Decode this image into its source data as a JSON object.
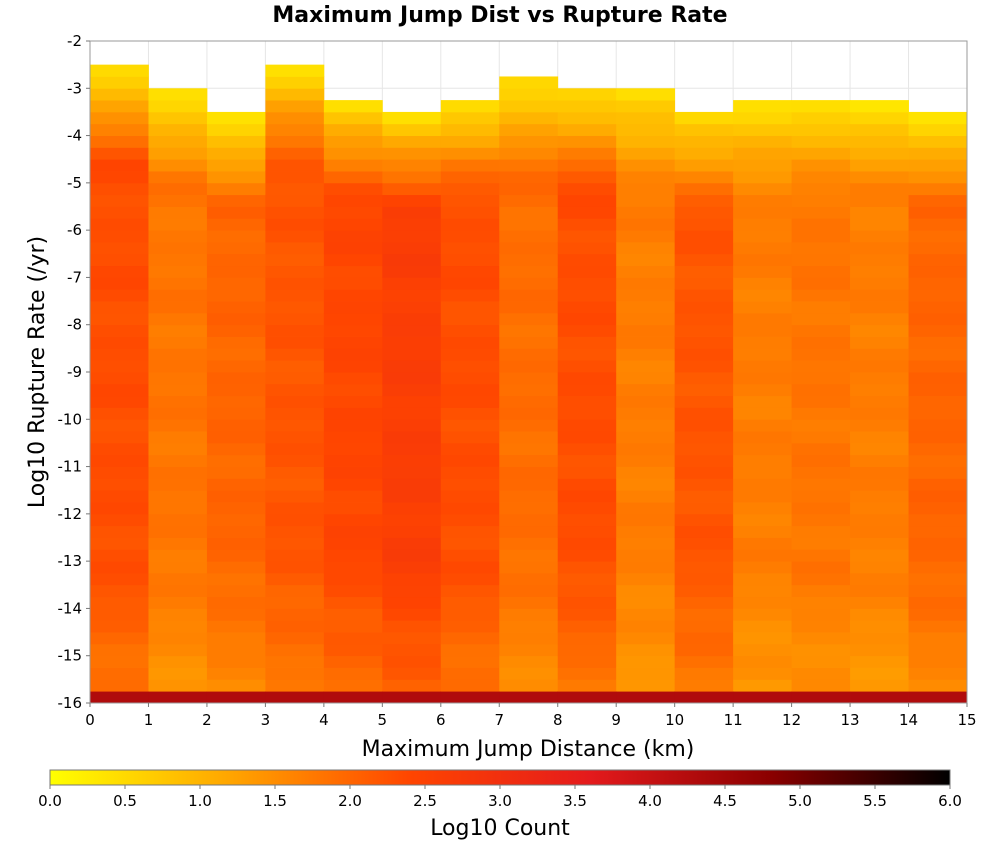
{
  "chart_data": {
    "type": "heatmap",
    "title": "Maximum Jump Dist vs Rupture Rate",
    "xlabel": "Maximum Jump Distance (km)",
    "ylabel": "Log10 Rupture Rate (/yr)",
    "xlim": [
      0,
      15
    ],
    "ylim": [
      -16,
      -2
    ],
    "x_ticks": [
      "0",
      "1",
      "2",
      "3",
      "4",
      "5",
      "6",
      "7",
      "8",
      "9",
      "10",
      "11",
      "12",
      "13",
      "14",
      "15"
    ],
    "y_ticks": [
      "-2",
      "-3",
      "-4",
      "-5",
      "-6",
      "-7",
      "-8",
      "-9",
      "-10",
      "-11",
      "-12",
      "-13",
      "-14",
      "-15",
      "-16"
    ],
    "x_bins": [
      0.5,
      1.5,
      2.5,
      3.5,
      4.5,
      5.5,
      6.5,
      7.5,
      8.5,
      9.5,
      10.5,
      11.5,
      12.5,
      13.5,
      14.5
    ],
    "y_bin_width": 0.25,
    "y_first_bin_center": -15.875,
    "y_tops": [
      -2.5,
      -3.0,
      -3.5,
      -2.5,
      -3.25,
      -3.5,
      -3.25,
      -2.75,
      -3.0,
      -3.0,
      -3.5,
      -3.25,
      -3.25,
      -3.25,
      -3.5
    ],
    "column_peak_values": [
      2.3,
      1.8,
      2.0,
      2.2,
      2.4,
      2.6,
      2.3,
      1.9,
      2.3,
      1.7,
      2.2,
      1.7,
      1.8,
      1.7,
      2.0
    ],
    "grid": true,
    "colorbar": {
      "label": "Log10 Count",
      "range": [
        0.0,
        6.0
      ],
      "ticks": [
        "0.0",
        "0.5",
        "1.0",
        "1.5",
        "2.0",
        "2.5",
        "3.0",
        "3.5",
        "4.0",
        "4.5",
        "5.0",
        "5.5",
        "6.0"
      ],
      "colors": [
        "#ffff00",
        "#ffa500",
        "#ff4500",
        "#e41a1c",
        "#8b0000",
        "#000000"
      ],
      "placement": "bottom"
    },
    "bottom_row_value": 4.3
  }
}
